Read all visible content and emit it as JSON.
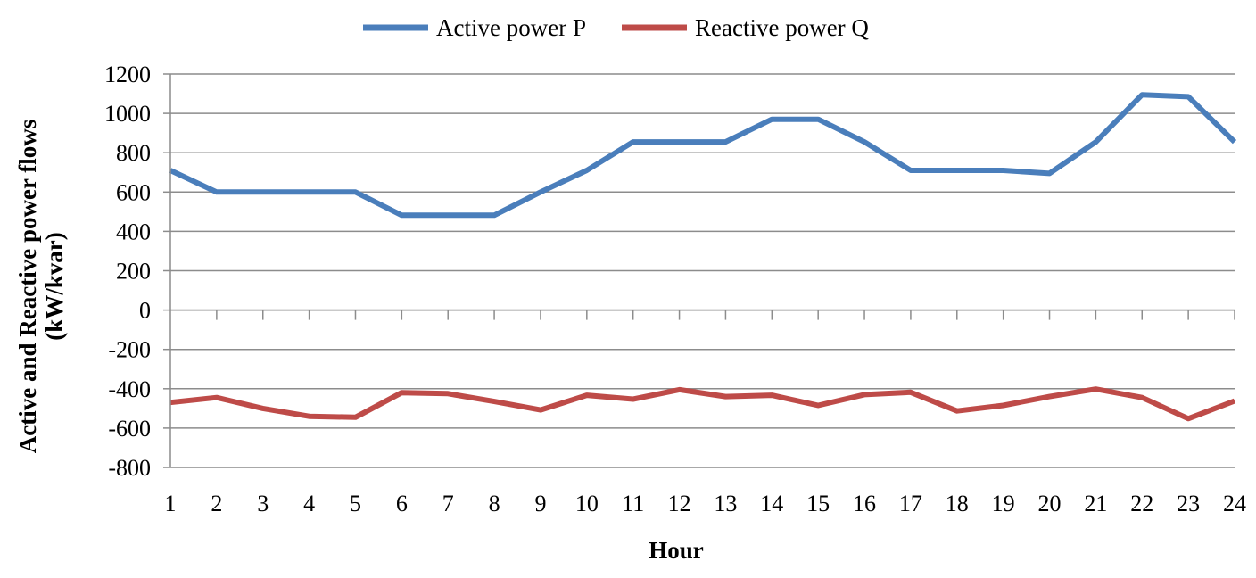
{
  "chart_data": {
    "type": "line",
    "title": "",
    "xlabel": "Hour",
    "ylabel_line1": "Active and Reactive power flows",
    "ylabel_line2": "(kW/kvar)",
    "x": [
      1,
      2,
      3,
      4,
      5,
      6,
      7,
      8,
      9,
      10,
      11,
      12,
      13,
      14,
      15,
      16,
      17,
      18,
      19,
      20,
      21,
      22,
      23,
      24
    ],
    "ylim": [
      -800,
      1200
    ],
    "yticks": [
      -800,
      -600,
      -400,
      -200,
      0,
      200,
      400,
      600,
      800,
      1000,
      1200
    ],
    "grid": "horizontal",
    "legend_position": "top",
    "series": [
      {
        "name": "Active power P",
        "color": "#4a7ebb",
        "values": [
          710,
          600,
          600,
          600,
          600,
          482,
          482,
          482,
          600,
          710,
          855,
          855,
          855,
          970,
          970,
          855,
          710,
          710,
          710,
          695,
          855,
          1095,
          1085,
          855
        ]
      },
      {
        "name": "Reactive power Q",
        "color": "#be4b48",
        "values": [
          -470,
          -445,
          -500,
          -540,
          -545,
          -420,
          -425,
          -465,
          -508,
          -433,
          -453,
          -405,
          -440,
          -433,
          -485,
          -430,
          -418,
          -513,
          -485,
          -440,
          -402,
          -445,
          -552,
          -462
        ]
      }
    ]
  }
}
